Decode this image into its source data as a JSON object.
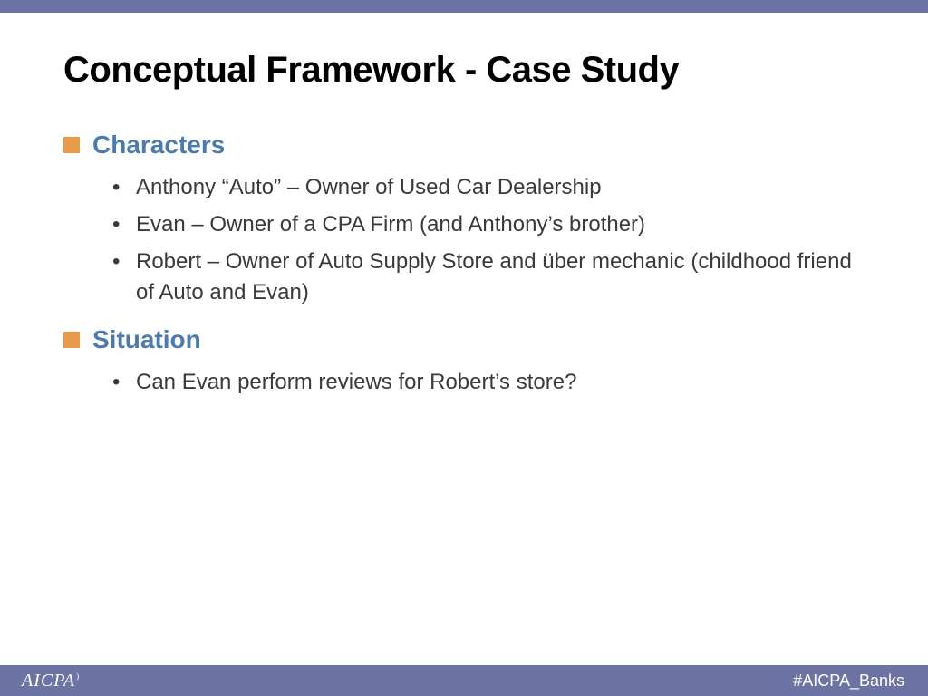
{
  "colors": {
    "bar": "#6d73a3",
    "section_title": "#4a7ab0",
    "square_bullet": "#e8994a",
    "title_text": "#000000",
    "body_text": "#3a3a3a",
    "footer_text": "#ffffff",
    "background": "#ffffff"
  },
  "slide": {
    "title": "Conceptual Framework  - Case Study",
    "sections": [
      {
        "heading": "Characters",
        "items": [
          "Anthony “Auto” – Owner of Used Car Dealership",
          "Evan – Owner of a CPA Firm (and Anthony’s brother)",
          "Robert – Owner of Auto Supply Store and über mechanic (childhood friend of Auto and Evan)"
        ]
      },
      {
        "heading": "Situation",
        "items": [
          "Can Evan perform reviews for Robert’s store?"
        ]
      }
    ]
  },
  "footer": {
    "logo": "AICPA",
    "logo_mark": ")",
    "hashtag": "#AICPA_Banks"
  }
}
